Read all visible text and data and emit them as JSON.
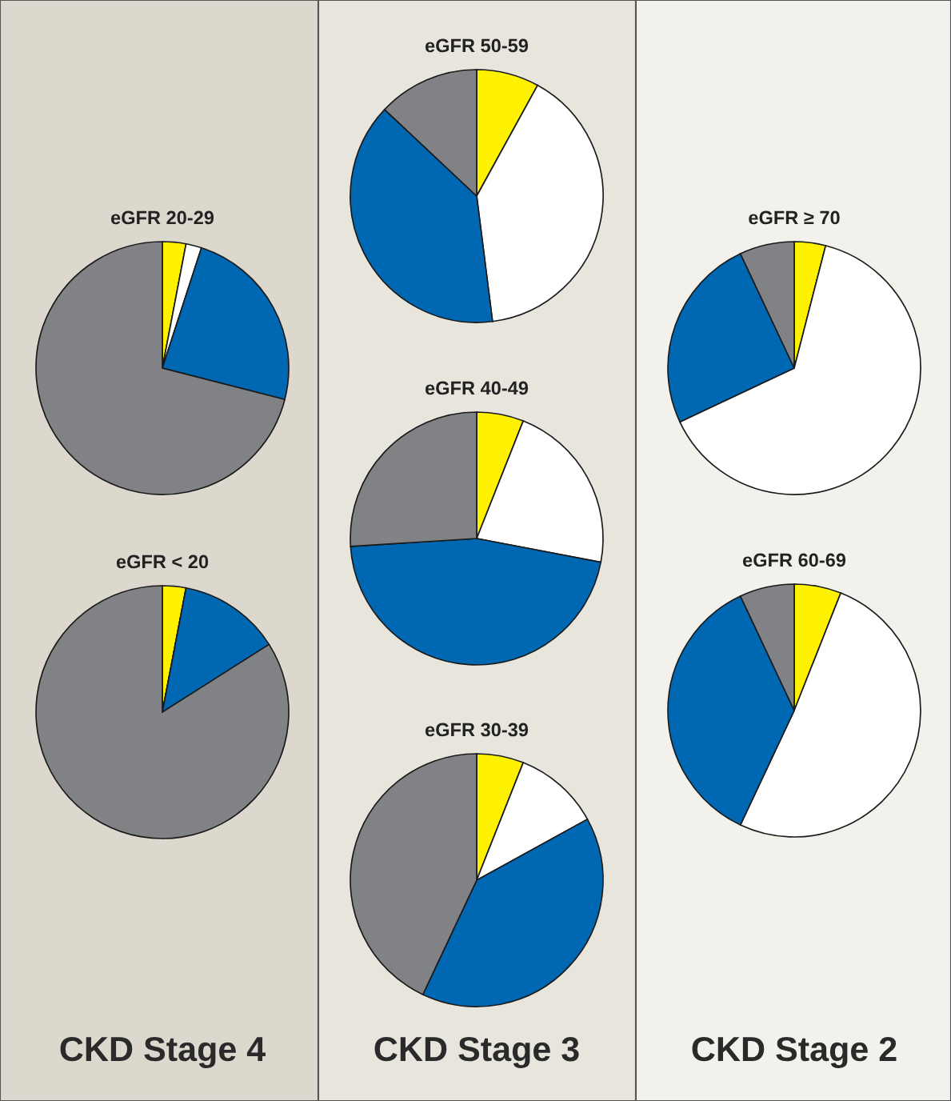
{
  "chart_data": [
    {
      "type": "pie",
      "title": "eGFR 50-59",
      "categories": [
        null,
        null,
        null,
        null
      ],
      "values": [
        8,
        40,
        39,
        13
      ],
      "colors": [
        "#fff200",
        "#ffffff",
        "#0068b3",
        "#808285"
      ]
    },
    {
      "type": "pie",
      "title": "eGFR 20-29",
      "categories": [
        null,
        null,
        null,
        null
      ],
      "values": [
        3,
        2,
        24,
        71
      ],
      "colors": [
        "#fff200",
        "#ffffff",
        "#0068b3",
        "#808285"
      ]
    },
    {
      "type": "pie",
      "title": "eGFR ≥ 70",
      "categories": [
        null,
        null,
        null,
        null
      ],
      "values": [
        4,
        64,
        25,
        7
      ],
      "colors": [
        "#fff200",
        "#ffffff",
        "#0068b3",
        "#808285"
      ]
    },
    {
      "type": "pie",
      "title": "eGFR 40-49",
      "categories": [
        null,
        null,
        null,
        null
      ],
      "values": [
        6,
        22,
        46,
        26
      ],
      "colors": [
        "#fff200",
        "#ffffff",
        "#0068b3",
        "#808285"
      ]
    },
    {
      "type": "pie",
      "title": "eGFR < 20",
      "categories": [
        null,
        null,
        null,
        null
      ],
      "values": [
        3,
        0,
        13,
        84
      ],
      "colors": [
        "#fff200",
        "#ffffff",
        "#0068b3",
        "#808285"
      ],
      "annotations": [
        "CKD Stage 4"
      ]
    },
    {
      "type": "pie",
      "title": "eGFR 60-69",
      "categories": [
        null,
        null,
        null,
        null
      ],
      "values": [
        6,
        51,
        36,
        7
      ],
      "colors": [
        "#fff200",
        "#ffffff",
        "#0068b3",
        "#808285"
      ],
      "annotations": [
        "CKD Stage 2"
      ]
    },
    {
      "type": "pie",
      "title": "eGFR 30-39",
      "categories": [
        null,
        null,
        null,
        null
      ],
      "values": [
        6,
        11,
        40,
        43
      ],
      "colors": [
        "#fff200",
        "#ffffff",
        "#0068b3",
        "#808285"
      ],
      "annotations": [
        "CKD Stage 3"
      ]
    }
  ]
}
